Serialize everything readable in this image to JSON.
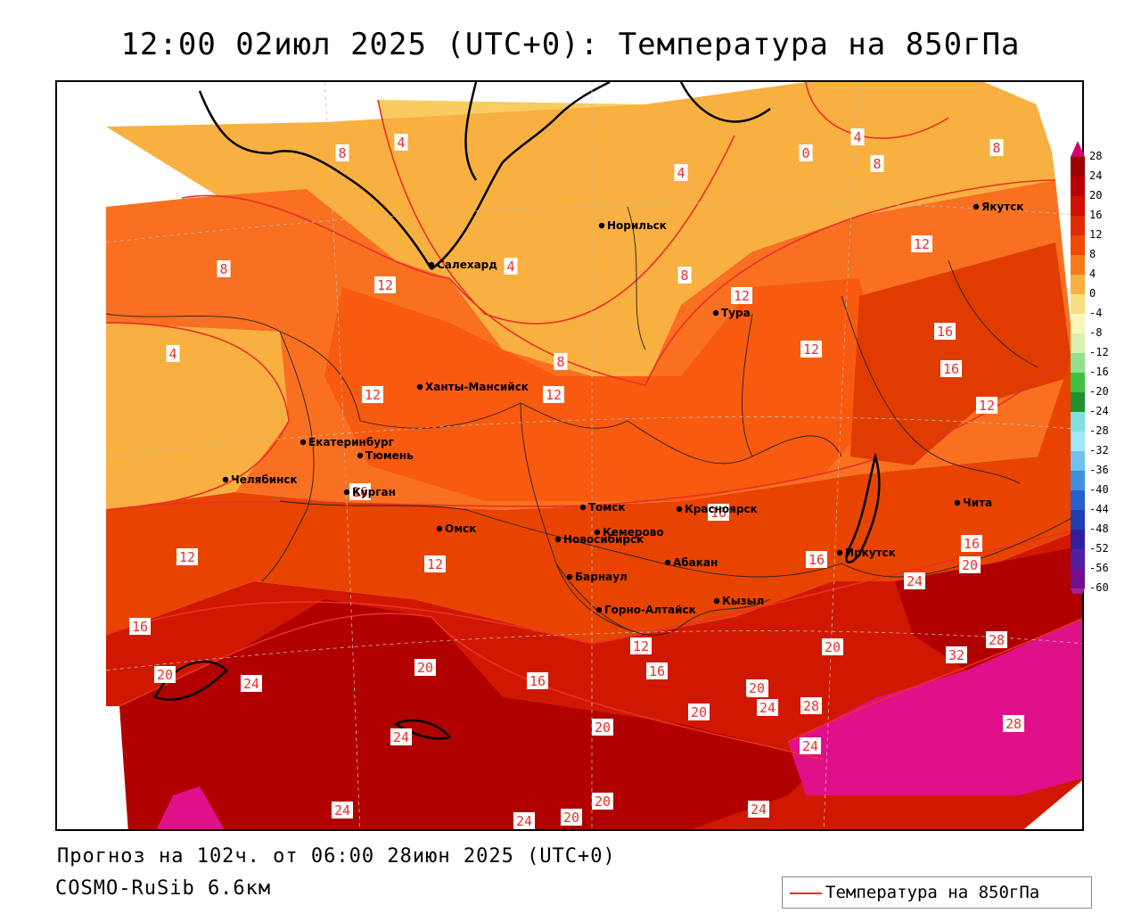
{
  "title": "12:00 02июл 2025 (UTC+0): Температура на 850гПа",
  "forecast_text": "Прогноз на 102ч. от 06:00 28июн 2025 (UTC+0)",
  "model_text": "COSMO-RuSib 6.6км",
  "legend": {
    "label": "Температура на 850гПа",
    "line_color": "#e8302a"
  },
  "colorbar": {
    "labels": [
      "28",
      "24",
      "20",
      "16",
      "12",
      "8",
      "4",
      "0",
      "-4",
      "-8",
      "-12",
      "-16",
      "-20",
      "-24",
      "-28",
      "-32",
      "-36",
      "-40",
      "-44",
      "-48",
      "-52",
      "-56",
      "-60"
    ],
    "colors": [
      "#d4006e",
      "#9c0000",
      "#b80000",
      "#d01000",
      "#e02a00",
      "#f04a00",
      "#f87a18",
      "#f8b040",
      "#f8e080",
      "#f8f8b8",
      "#d8f0b0",
      "#90e090",
      "#40c040",
      "#209030",
      "#80e0e0",
      "#a0e8f8",
      "#70c0f0",
      "#4090e0",
      "#2860d0",
      "#2040b0",
      "#3020a0",
      "#5020a0",
      "#701090",
      "#a0209a"
    ]
  },
  "cities": [
    {
      "name": "Норильск"
    },
    {
      "name": "Якутск"
    },
    {
      "name": "Салехард"
    },
    {
      "name": "Тура"
    },
    {
      "name": "Ханты-Мансийск"
    },
    {
      "name": "Екатеринбург"
    },
    {
      "name": "Тюмень"
    },
    {
      "name": "Челябинск"
    },
    {
      "name": "Курган"
    },
    {
      "name": "Омск"
    },
    {
      "name": "Новосибирск"
    },
    {
      "name": "Томск"
    },
    {
      "name": "Красноярск"
    },
    {
      "name": "Кемерово"
    },
    {
      "name": "Абакан"
    },
    {
      "name": "Барнаул"
    },
    {
      "name": "Горно-Алтайск"
    },
    {
      "name": "Кызыл"
    },
    {
      "name": "Иркутск"
    },
    {
      "name": "Чита"
    }
  ],
  "contour_labels": [
    "8",
    "4",
    "4",
    "0",
    "4",
    "8",
    "8",
    "4",
    "8",
    "4",
    "12",
    "8",
    "12",
    "8",
    "12",
    "12",
    "16",
    "16",
    "12",
    "12",
    "12",
    "12",
    "16",
    "16",
    "12",
    "16",
    "16",
    "20",
    "24",
    "16",
    "20",
    "24",
    "20",
    "16",
    "12",
    "16",
    "20",
    "32",
    "28",
    "24",
    "20",
    "20",
    "28",
    "24",
    "20",
    "24",
    "20",
    "28",
    "24",
    "20",
    "24",
    "24",
    "20",
    "28"
  ]
}
